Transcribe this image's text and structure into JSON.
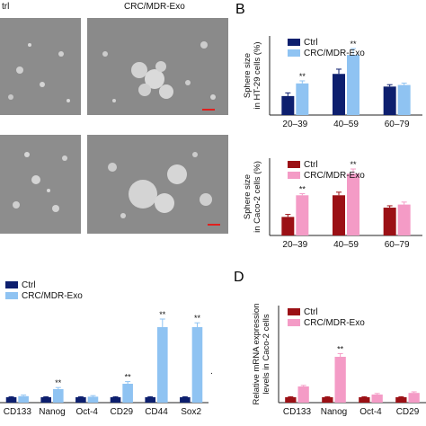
{
  "panels": {
    "a_cropped_label_left": "trl",
    "a_label_right": "CRC/MDR-Exo",
    "b_letter": "B",
    "d_letter": "D",
    "dot": "."
  },
  "colors": {
    "ctrl_blue": "#0d1f6e",
    "exo_blue": "#8fc3f2",
    "ctrl_red": "#9b1015",
    "exo_pink": "#f49bc6",
    "asterisk": "#888888",
    "scale_bar": "#e0201e"
  },
  "chart_data": [
    {
      "id": "B-top",
      "type": "bar",
      "ylabel": "Sphere size\nin HT-29 cells (%)",
      "categories": [
        "20–39",
        "40–59",
        "60–79"
      ],
      "series": [
        {
          "name": "Ctrl",
          "values": [
            6,
            13,
            9
          ],
          "errors": [
            1,
            1.5,
            0.6
          ]
        },
        {
          "name": "CRC/MDR-Exo",
          "values": [
            10,
            19,
            9.5
          ],
          "errors": [
            0.8,
            2,
            0.6
          ]
        }
      ],
      "significance": [
        [
          "",
          "**"
        ],
        [
          "",
          "**"
        ],
        [
          "",
          ""
        ]
      ],
      "ylim": [
        0,
        25
      ]
    },
    {
      "id": "B-bottom",
      "type": "bar",
      "ylabel": "Sphere size\nin Caco-2 cells (%)",
      "categories": [
        "20–39",
        "40–59",
        "60–79"
      ],
      "series": [
        {
          "name": "Ctrl",
          "values": [
            6,
            13,
            9
          ],
          "errors": [
            0.8,
            1,
            0.6
          ]
        },
        {
          "name": "CRC/MDR-Exo",
          "values": [
            13,
            20,
            10
          ],
          "errors": [
            0.5,
            1.5,
            0.8
          ]
        }
      ],
      "significance": [
        [
          "",
          "**"
        ],
        [
          "",
          "**"
        ],
        [
          "",
          ""
        ]
      ],
      "ylim": [
        0,
        25
      ]
    },
    {
      "id": "C",
      "type": "bar",
      "categories": [
        "CD133",
        "Nanog",
        "Oct-4",
        "CD29",
        "CD44",
        "Sox2"
      ],
      "series": [
        {
          "name": "Ctrl",
          "values": [
            1,
            1,
            1,
            1,
            1,
            1
          ],
          "errors": [
            0.1,
            0.1,
            0.1,
            0.1,
            0.1,
            0.1
          ]
        },
        {
          "name": "CRC/MDR-Exo",
          "values": [
            1.2,
            2.5,
            1.1,
            3.5,
            14,
            14
          ],
          "errors": [
            0.2,
            0.3,
            0.2,
            0.4,
            1.5,
            0.8
          ]
        }
      ],
      "significance": [
        [
          "",
          ""
        ],
        [
          "",
          "**"
        ],
        [
          "",
          ""
        ],
        [
          "",
          "**"
        ],
        [
          "",
          "**"
        ],
        [
          "",
          "**"
        ]
      ],
      "ylim": [
        0,
        18
      ]
    },
    {
      "id": "D",
      "type": "bar",
      "ylabel": "Relative mRNA expression\nlevels in Caco-2 cells",
      "categories": [
        "CD133",
        "Nanog",
        "Oct-4",
        "CD29"
      ],
      "series": [
        {
          "name": "Ctrl",
          "values": [
            1,
            1,
            1,
            1
          ],
          "errors": [
            0.1,
            0.1,
            0.1,
            0.1
          ]
        },
        {
          "name": "CRC/MDR-Exo",
          "values": [
            3,
            8.5,
            1.5,
            1.8
          ],
          "errors": [
            0.2,
            0.6,
            0.2,
            0.2
          ]
        }
      ],
      "significance": [
        [
          "",
          ""
        ],
        [
          "",
          "**"
        ],
        [
          "",
          ""
        ],
        [
          "",
          ""
        ]
      ],
      "ylim": [
        0,
        18
      ]
    }
  ]
}
